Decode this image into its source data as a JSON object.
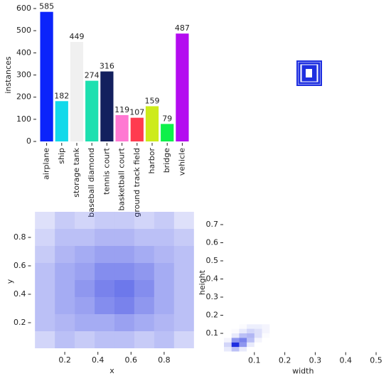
{
  "chart_data": [
    {
      "type": "bar",
      "ylabel": "instances",
      "categories": [
        "airplane",
        "ship",
        "storage tank",
        "baseball diamond",
        "tennis court",
        "basketball court",
        "ground track field",
        "harbor",
        "bridge",
        "vehicle"
      ],
      "values": [
        585,
        182,
        449,
        274,
        316,
        119,
        107,
        159,
        79,
        487
      ],
      "colors": [
        "#0b24fb",
        "#12d9ea",
        "#f0f0f0",
        "#1de0b0",
        "#13205e",
        "#ff78d2",
        "#ff3b4f",
        "#cdeb1a",
        "#0ef04a",
        "#b40cf0"
      ],
      "ylim": [
        0,
        600
      ],
      "yticks": [
        0,
        100,
        200,
        300,
        400,
        500,
        600
      ]
    },
    {
      "type": "hist2d",
      "xlabel": "x",
      "ylabel": "y",
      "color": "#1f2fe0",
      "xbins": [
        0.02,
        0.14,
        0.26,
        0.38,
        0.5,
        0.62,
        0.74,
        0.86,
        0.98
      ],
      "ybins": [
        0.02,
        0.14,
        0.26,
        0.38,
        0.5,
        0.62,
        0.74,
        0.86,
        0.98
      ],
      "z": [
        [
          0.2,
          0.3,
          0.25,
          0.3,
          0.3,
          0.25,
          0.3,
          0.2
        ],
        [
          0.3,
          0.35,
          0.4,
          0.4,
          0.45,
          0.4,
          0.35,
          0.3
        ],
        [
          0.3,
          0.4,
          0.45,
          0.55,
          0.6,
          0.5,
          0.4,
          0.3
        ],
        [
          0.3,
          0.4,
          0.5,
          0.6,
          0.65,
          0.55,
          0.4,
          0.3
        ],
        [
          0.3,
          0.4,
          0.45,
          0.55,
          0.55,
          0.5,
          0.4,
          0.3
        ],
        [
          0.25,
          0.35,
          0.4,
          0.45,
          0.45,
          0.4,
          0.35,
          0.3
        ],
        [
          0.2,
          0.3,
          0.3,
          0.35,
          0.35,
          0.3,
          0.3,
          0.25
        ],
        [
          0.15,
          0.25,
          0.2,
          0.25,
          0.25,
          0.2,
          0.25,
          0.15
        ]
      ],
      "xlim": [
        0,
        0.97
      ],
      "ylim": [
        0,
        0.98
      ],
      "xticks": [
        0.2,
        0.4,
        0.6,
        0.8
      ],
      "yticks": [
        0.2,
        0.4,
        0.6,
        0.8
      ]
    },
    {
      "type": "hist2d",
      "xlabel": "width",
      "ylabel": "height",
      "color": "#1f2fe0",
      "xbins": [
        0,
        0.025,
        0.05,
        0.075,
        0.1,
        0.125,
        0.15
      ],
      "ybins": [
        0,
        0.025,
        0.05,
        0.075,
        0.1,
        0.125,
        0.15
      ],
      "z": [
        [
          0.1,
          0.3,
          0.1,
          0,
          0,
          0
        ],
        [
          0.2,
          1.0,
          0.5,
          0.1,
          0,
          0
        ],
        [
          0.05,
          0.5,
          0.6,
          0.3,
          0.05,
          0
        ],
        [
          0,
          0.1,
          0.3,
          0.35,
          0.15,
          0.02
        ],
        [
          0,
          0.02,
          0.1,
          0.2,
          0.15,
          0.05
        ],
        [
          0,
          0,
          0.02,
          0.08,
          0.08,
          0.05
        ]
      ],
      "xlim": [
        0,
        0.52
      ],
      "ylim": [
        0,
        0.76
      ],
      "xticks": [
        0.1,
        0.2,
        0.3,
        0.4,
        0.5
      ],
      "yticks": [
        0.1,
        0.2,
        0.3,
        0.4,
        0.5,
        0.6,
        0.7
      ]
    }
  ]
}
